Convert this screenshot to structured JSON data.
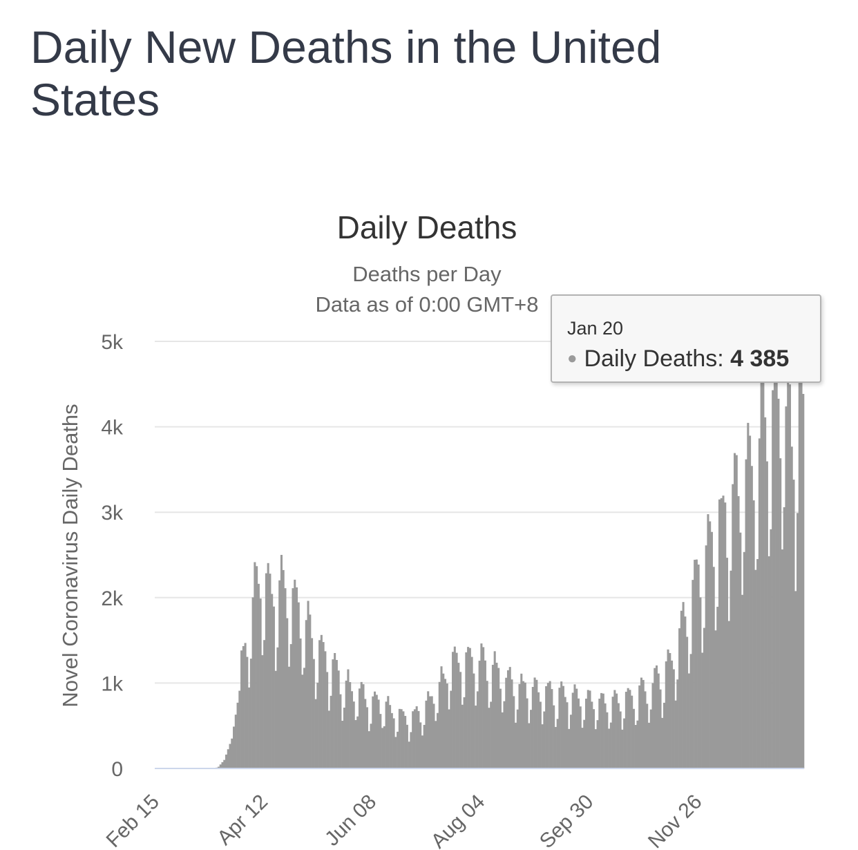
{
  "page": {
    "title": "Daily New Deaths in the United States"
  },
  "chart_data": {
    "type": "bar",
    "title": "Daily Deaths",
    "subtitle_lines": [
      "Deaths per Day",
      "Data as of 0:00 GMT+8"
    ],
    "ylabel": "Novel Coronavirus Daily Deaths",
    "xlabel": "",
    "ylim": [
      0,
      5000
    ],
    "yticks": [
      0,
      1000,
      2000,
      3000,
      4000,
      5000
    ],
    "ytick_labels": [
      "0",
      "1k",
      "2k",
      "3k",
      "4k",
      "5k"
    ],
    "x_start": "Feb 15",
    "x_end": "Jan 20",
    "num_days": 341,
    "xtick_labels": [
      "Feb 15",
      "Apr 12",
      "Jun 08",
      "Aug 04",
      "Sep 30",
      "Nov 26"
    ],
    "xtick_day_index": [
      0,
      57,
      114,
      171,
      228,
      285
    ],
    "series": [
      {
        "name": "Daily Deaths",
        "color": "#9a9a9a"
      }
    ],
    "trend_anchors": [
      [
        0,
        0
      ],
      [
        31,
        0
      ],
      [
        33,
        20
      ],
      [
        36,
        100
      ],
      [
        40,
        350
      ],
      [
        45,
        1050
      ],
      [
        50,
        1700
      ],
      [
        53,
        1900
      ],
      [
        56,
        2050
      ],
      [
        60,
        1900
      ],
      [
        65,
        1950
      ],
      [
        72,
        1850
      ],
      [
        80,
        1500
      ],
      [
        88,
        1200
      ],
      [
        95,
        1000
      ],
      [
        102,
        850
      ],
      [
        110,
        750
      ],
      [
        118,
        680
      ],
      [
        125,
        600
      ],
      [
        132,
        520
      ],
      [
        140,
        600
      ],
      [
        148,
        820
      ],
      [
        155,
        1100
      ],
      [
        163,
        1150
      ],
      [
        171,
        1120
      ],
      [
        180,
        1000
      ],
      [
        190,
        870
      ],
      [
        200,
        830
      ],
      [
        210,
        780
      ],
      [
        220,
        760
      ],
      [
        230,
        700
      ],
      [
        240,
        700
      ],
      [
        250,
        740
      ],
      [
        258,
        830
      ],
      [
        264,
        950
      ],
      [
        270,
        1100
      ],
      [
        276,
        1450
      ],
      [
        282,
        1900
      ],
      [
        288,
        2200
      ],
      [
        295,
        2500
      ],
      [
        302,
        2800
      ],
      [
        308,
        3000
      ],
      [
        314,
        3250
      ],
      [
        320,
        3550
      ],
      [
        326,
        3800
      ],
      [
        330,
        3700
      ],
      [
        336,
        3300
      ],
      [
        340,
        4385
      ]
    ],
    "last_point": {
      "date": "Jan 20",
      "value": 4385
    }
  },
  "tooltip": {
    "date": "Jan 20",
    "series_label": "Daily Deaths:",
    "value": "4 385",
    "dot_color": "#9a9a9a"
  }
}
